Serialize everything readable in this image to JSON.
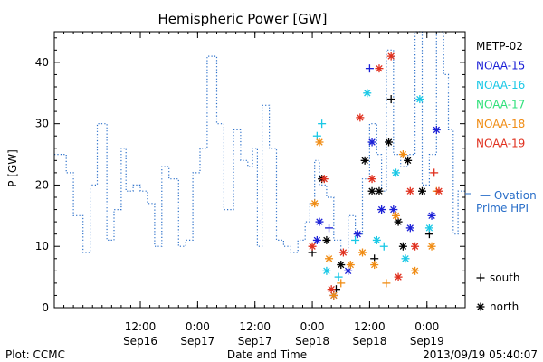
{
  "chart_data": {
    "type": "scatter",
    "title": "Hemispheric Power [GW]",
    "ylabel": "P [GW]",
    "xlabel": "Date and Time",
    "ylim": [
      0,
      45
    ],
    "yticks": [
      0,
      10,
      20,
      30,
      40
    ],
    "xlim": [
      "2013-09-15 18:00",
      "2013-09-19 08:00"
    ],
    "xticks": [
      {
        "t": "2013-09-16 12:00",
        "time": "12:00",
        "date": "Sep16"
      },
      {
        "t": "2013-09-17 00:00",
        "time": "0:00",
        "date": "Sep17"
      },
      {
        "t": "2013-09-17 12:00",
        "time": "12:00",
        "date": "Sep17"
      },
      {
        "t": "2013-09-18 00:00",
        "time": "0:00",
        "date": "Sep18"
      },
      {
        "t": "2013-09-18 12:00",
        "time": "12:00",
        "date": "Sep18"
      },
      {
        "t": "2013-09-19 00:00",
        "time": "0:00",
        "date": "Sep19"
      }
    ],
    "ovation": {
      "name_line1": "— Ovation",
      "name_line2": "Prime HPI",
      "color": "#2a6fc9",
      "current_value": 19,
      "t": [
        "2013-09-15 18:00",
        "2013-09-15 20:30",
        "2013-09-15 22:00",
        "2013-09-16 00:00",
        "2013-09-16 01:30",
        "2013-09-16 03:00",
        "2013-09-16 05:00",
        "2013-09-16 06:30",
        "2013-09-16 08:00",
        "2013-09-16 09:00",
        "2013-09-16 10:30",
        "2013-09-16 12:00",
        "2013-09-16 13:30",
        "2013-09-16 15:00",
        "2013-09-16 16:30",
        "2013-09-16 18:00",
        "2013-09-16 20:00",
        "2013-09-16 21:30",
        "2013-09-16 23:00",
        "2013-09-17 00:30",
        "2013-09-17 02:00",
        "2013-09-17 04:00",
        "2013-09-17 05:30",
        "2013-09-17 07:30",
        "2013-09-17 09:00",
        "2013-09-17 10:30",
        "2013-09-17 11:30",
        "2013-09-17 12:30",
        "2013-09-17 13:30",
        "2013-09-17 15:00",
        "2013-09-17 16:30",
        "2013-09-17 18:00",
        "2013-09-17 19:30",
        "2013-09-17 21:00",
        "2013-09-17 22:30",
        "2013-09-17 23:30",
        "2013-09-18 00:30",
        "2013-09-18 01:30",
        "2013-09-18 03:00",
        "2013-09-18 04:30",
        "2013-09-18 06:00",
        "2013-09-18 07:30",
        "2013-09-18 09:00",
        "2013-09-18 10:30",
        "2013-09-18 12:00",
        "2013-09-18 13:30",
        "2013-09-18 14:30",
        "2013-09-18 15:30",
        "2013-09-18 17:00",
        "2013-09-18 18:30",
        "2013-09-18 20:00",
        "2013-09-18 21:30",
        "2013-09-18 23:00",
        "2013-09-19 00:30",
        "2013-09-19 02:00",
        "2013-09-19 03:30",
        "2013-09-19 04:30",
        "2013-09-19 05:30",
        "2013-09-19 06:30",
        "2013-09-19 07:30"
      ],
      "values": [
        25,
        22,
        15,
        9,
        20,
        30,
        11,
        16,
        26,
        19,
        20,
        19,
        17,
        10,
        23,
        21,
        10,
        11,
        22,
        26,
        41,
        30,
        16,
        29,
        24,
        23,
        26,
        10,
        33,
        26,
        11,
        10,
        9,
        11,
        14,
        17,
        24,
        20,
        18,
        11,
        9,
        15,
        12,
        21,
        30,
        25,
        19,
        42,
        25,
        23,
        25,
        45,
        20,
        25,
        45,
        38,
        29,
        12,
        19,
        19
      ]
    },
    "satellites": [
      {
        "name": "METP-02",
        "color": "#000000",
        "points": [
          {
            "t": "2013-09-18 00:00",
            "v": 9,
            "m": "+"
          },
          {
            "t": "2013-09-18 02:00",
            "v": 21,
            "m": "*"
          },
          {
            "t": "2013-09-18 03:00",
            "v": 11,
            "m": "*"
          },
          {
            "t": "2013-09-18 05:00",
            "v": 3,
            "m": "+"
          },
          {
            "t": "2013-09-18 06:00",
            "v": 7,
            "m": "*"
          },
          {
            "t": "2013-09-18 11:00",
            "v": 24,
            "m": "*"
          },
          {
            "t": "2013-09-18 12:30",
            "v": 19,
            "m": "*"
          },
          {
            "t": "2013-09-18 14:00",
            "v": 19,
            "m": "*"
          },
          {
            "t": "2013-09-18 16:00",
            "v": 27,
            "m": "*"
          },
          {
            "t": "2013-09-18 18:00",
            "v": 14,
            "m": "*"
          },
          {
            "t": "2013-09-18 20:00",
            "v": 24,
            "m": "*"
          },
          {
            "t": "2013-09-18 23:00",
            "v": 19,
            "m": "*"
          },
          {
            "t": "2013-09-19 00:30",
            "v": 12,
            "m": "+"
          },
          {
            "t": "2013-09-18 16:30",
            "v": 34,
            "m": "+"
          },
          {
            "t": "2013-09-18 13:00",
            "v": 8,
            "m": "+"
          },
          {
            "t": "2013-09-18 19:00",
            "v": 10,
            "m": "*"
          }
        ]
      },
      {
        "name": "NOAA-15",
        "color": "#1a1fd6",
        "points": [
          {
            "t": "2013-09-18 01:00",
            "v": 11,
            "m": "*"
          },
          {
            "t": "2013-09-18 01:30",
            "v": 14,
            "m": "*"
          },
          {
            "t": "2013-09-18 03:30",
            "v": 13,
            "m": "+"
          },
          {
            "t": "2013-09-18 04:30",
            "v": 2,
            "m": "*"
          },
          {
            "t": "2013-09-18 07:30",
            "v": 6,
            "m": "*"
          },
          {
            "t": "2013-09-18 09:30",
            "v": 12,
            "m": "*"
          },
          {
            "t": "2013-09-18 12:00",
            "v": 39,
            "m": "+"
          },
          {
            "t": "2013-09-18 12:30",
            "v": 27,
            "m": "*"
          },
          {
            "t": "2013-09-18 14:30",
            "v": 16,
            "m": "*"
          },
          {
            "t": "2013-09-18 17:00",
            "v": 16,
            "m": "*"
          },
          {
            "t": "2013-09-18 20:30",
            "v": 13,
            "m": "*"
          },
          {
            "t": "2013-09-19 01:00",
            "v": 15,
            "m": "*"
          },
          {
            "t": "2013-09-19 02:00",
            "v": 29,
            "m": "*"
          }
        ]
      },
      {
        "name": "NOAA-16",
        "color": "#19c8e6",
        "points": [
          {
            "t": "2013-09-18 01:00",
            "v": 28,
            "m": "+"
          },
          {
            "t": "2013-09-18 02:00",
            "v": 30,
            "m": "+"
          },
          {
            "t": "2013-09-18 03:00",
            "v": 6,
            "m": "*"
          },
          {
            "t": "2013-09-18 05:30",
            "v": 5,
            "m": "+"
          },
          {
            "t": "2013-09-18 09:00",
            "v": 11,
            "m": "+"
          },
          {
            "t": "2013-09-18 11:30",
            "v": 35,
            "m": "*"
          },
          {
            "t": "2013-09-18 13:30",
            "v": 11,
            "m": "*"
          },
          {
            "t": "2013-09-18 15:00",
            "v": 10,
            "m": "+"
          },
          {
            "t": "2013-09-18 17:30",
            "v": 22,
            "m": "*"
          },
          {
            "t": "2013-09-18 19:30",
            "v": 8,
            "m": "*"
          },
          {
            "t": "2013-09-18 22:30",
            "v": 34,
            "m": "*"
          },
          {
            "t": "2013-09-19 00:30",
            "v": 13,
            "m": "*"
          }
        ]
      },
      {
        "name": "NOAA-17",
        "color": "#2ee07a",
        "points": []
      },
      {
        "name": "NOAA-18",
        "color": "#f08c14",
        "points": [
          {
            "t": "2013-09-18 00:30",
            "v": 17,
            "m": "*"
          },
          {
            "t": "2013-09-18 01:30",
            "v": 27,
            "m": "*"
          },
          {
            "t": "2013-09-18 03:30",
            "v": 8,
            "m": "*"
          },
          {
            "t": "2013-09-18 04:30",
            "v": 2,
            "m": "*"
          },
          {
            "t": "2013-09-18 06:00",
            "v": 4,
            "m": "+"
          },
          {
            "t": "2013-09-18 08:00",
            "v": 7,
            "m": "*"
          },
          {
            "t": "2013-09-18 10:30",
            "v": 9,
            "m": "*"
          },
          {
            "t": "2013-09-18 13:00",
            "v": 7,
            "m": "*"
          },
          {
            "t": "2013-09-18 15:30",
            "v": 4,
            "m": "+"
          },
          {
            "t": "2013-09-18 17:30",
            "v": 15,
            "m": "*"
          },
          {
            "t": "2013-09-18 19:00",
            "v": 25,
            "m": "*"
          },
          {
            "t": "2013-09-18 21:30",
            "v": 6,
            "m": "*"
          },
          {
            "t": "2013-09-19 01:00",
            "v": 10,
            "m": "*"
          },
          {
            "t": "2013-09-19 02:00",
            "v": 19,
            "m": "+"
          }
        ]
      },
      {
        "name": "NOAA-19",
        "color": "#e0301e",
        "points": [
          {
            "t": "2013-09-18 00:00",
            "v": 10,
            "m": "*"
          },
          {
            "t": "2013-09-18 02:30",
            "v": 21,
            "m": "*"
          },
          {
            "t": "2013-09-18 04:00",
            "v": 3,
            "m": "*"
          },
          {
            "t": "2013-09-18 06:30",
            "v": 9,
            "m": "*"
          },
          {
            "t": "2013-09-18 10:00",
            "v": 31,
            "m": "*"
          },
          {
            "t": "2013-09-18 12:30",
            "v": 21,
            "m": "*"
          },
          {
            "t": "2013-09-18 14:00",
            "v": 39,
            "m": "*"
          },
          {
            "t": "2013-09-18 16:30",
            "v": 41,
            "m": "*"
          },
          {
            "t": "2013-09-18 18:00",
            "v": 5,
            "m": "*"
          },
          {
            "t": "2013-09-18 20:30",
            "v": 19,
            "m": "*"
          },
          {
            "t": "2013-09-18 21:30",
            "v": 10,
            "m": "*"
          },
          {
            "t": "2013-09-19 01:30",
            "v": 22,
            "m": "+"
          },
          {
            "t": "2013-09-19 02:30",
            "v": 19,
            "m": "*"
          }
        ]
      }
    ],
    "marker_legend": [
      {
        "symbol": "+",
        "label": "south"
      },
      {
        "symbol": "*",
        "label": "north"
      }
    ]
  },
  "footer": {
    "left": "Plot: CCMC",
    "right": "2013/09/19 05:40:07"
  }
}
